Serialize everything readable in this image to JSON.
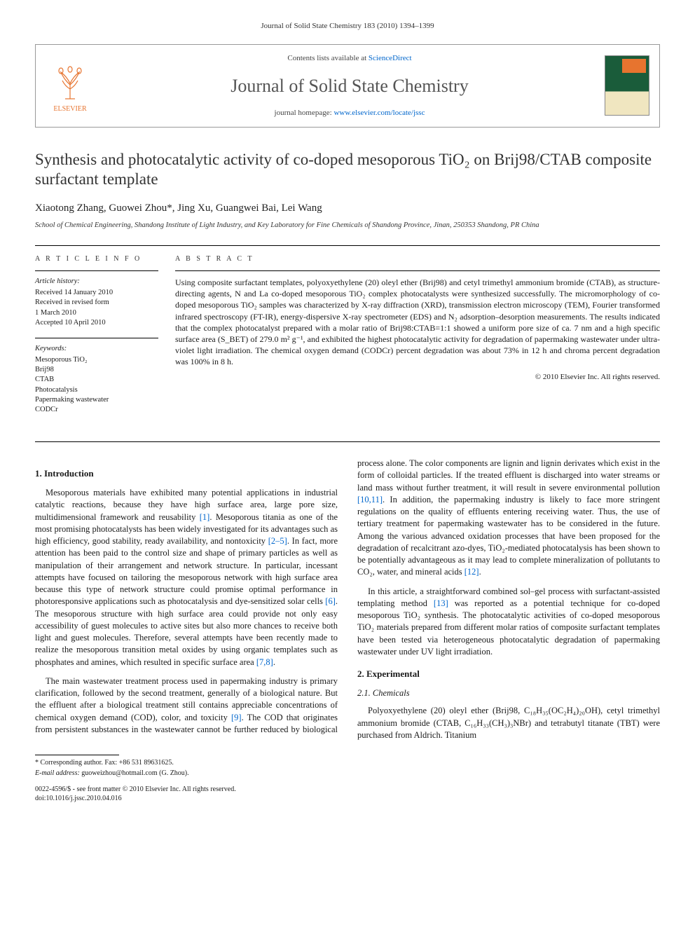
{
  "citation": "Journal of Solid State Chemistry 183 (2010) 1394–1399",
  "header": {
    "contents_prefix": "Contents lists available at ",
    "contents_link": "ScienceDirect",
    "journal_name": "Journal of Solid State Chemistry",
    "homepage_prefix": "journal homepage: ",
    "homepage_url": "www.elsevier.com/locate/jssc",
    "publisher_name": "ELSEVIER"
  },
  "title": "Synthesis and photocatalytic activity of co-doped mesoporous TiO₂ on Brij98/CTAB composite surfactant template",
  "authors": "Xiaotong Zhang, Guowei Zhou*, Jing Xu, Guangwei Bai, Lei Wang",
  "affiliation": "School of Chemical Engineering, Shandong Institute of Light Industry, and Key Laboratory for Fine Chemicals of Shandong Province, Jinan, 250353 Shandong, PR China",
  "info": {
    "label": "A R T I C L E  I N F O",
    "history_label": "Article history:",
    "received": "Received 14 January 2010",
    "revised": "Received in revised form",
    "revised_date": "1 March 2010",
    "accepted": "Accepted 10 April 2010",
    "keywords_label": "Keywords:",
    "keywords": [
      "Mesoporous TiO₂",
      "Brij98",
      "CTAB",
      "Photocatalysis",
      "Papermaking wastewater",
      "CODCr"
    ]
  },
  "abstract": {
    "label": "A B S T R A C T",
    "text": "Using composite surfactant templates, polyoxyethylene (20) oleyl ether (Brij98) and cetyl trimethyl ammonium bromide (CTAB), as structure-directing agents, N and La co-doped mesoporous TiO₂ complex photocatalysts were synthesized successfully. The micromorphology of co-doped mesoporous TiO₂ samples was characterized by X-ray diffraction (XRD), transmission electron microscopy (TEM), Fourier transformed infrared spectroscopy (FT-IR), energy-dispersive X-ray spectrometer (EDS) and N₂ adsorption–desorption measurements. The results indicated that the complex photocatalyst prepared with a molar ratio of Brij98:CTAB=1:1 showed a uniform pore size of ca. 7 nm and a high specific surface area (S_BET) of 279.0 m² g⁻¹, and exhibited the highest photocatalytic activity for degradation of papermaking wastewater under ultra-violet light irradiation. The chemical oxygen demand (CODCr) percent degradation was about 73% in 12 h and chroma percent degradation was 100% in 8 h.",
    "copyright": "© 2010 Elsevier Inc. All rights reserved."
  },
  "sections": {
    "intro_heading": "1. Introduction",
    "intro_p1": "Mesoporous materials have exhibited many potential applications in industrial catalytic reactions, because they have high surface area, large pore size, multidimensional framework and reusability [1]. Mesoporous titania as one of the most promising photocatalysts has been widely investigated for its advantages such as high efficiency, good stability, ready availability, and nontoxicity [2–5]. In fact, more attention has been paid to the control size and shape of primary particles as well as manipulation of their arrangement and network structure. In particular, incessant attempts have focused on tailoring the mesoporous network with high surface area because this type of network structure could promise optimal performance in photoresponsive applications such as photocatalysis and dye-sensitized solar cells [6]. The mesoporous structure with high surface area could provide not only easy accessibility of guest molecules to active sites but also more chances to receive both light and guest molecules. Therefore, several attempts have been recently made to realize the mesoporous transition metal oxides by using organic templates such as phosphates and amines, which resulted in specific surface area [7,8].",
    "intro_p2": "The main wastewater treatment process used in papermaking industry is primary clarification, followed by the second treatment, generally of a biological nature. But the effluent after a biological treatment still contains appreciable concentrations of chemical oxygen demand (COD), color, and toxicity [9]. The COD that originates from persistent substances in the wastewater cannot be further reduced by biological process alone. The color components are lignin and lignin derivates which exist in the form of colloidal particles. If the treated effluent is discharged into water streams or land mass without further treatment, it will result in severe environmental pollution [10,11]. In addition, the papermaking industry is likely to face more stringent regulations on the quality of effluents entering receiving water. Thus, the use of tertiary treatment for papermaking wastewater has to be considered in the future. Among the various advanced oxidation processes that have been proposed for the degradation of recalcitrant azo-dyes, TiO₂-mediated photocatalysis has been shown to be potentially advantageous as it may lead to complete mineralization of pollutants to CO₂, water, and mineral acids [12].",
    "intro_p3": "In this article, a straightforward combined sol–gel process with surfactant-assisted templating method [13] was reported as a potential technique for co-doped mesoporous TiO₂ synthesis. The photocatalytic activities of co-doped mesoporous TiO₂ materials prepared from different molar ratios of composite surfactant templates have been tested via heterogeneous photocatalytic degradation of papermaking wastewater under UV light irradiation.",
    "exp_heading": "2. Experimental",
    "chem_heading": "2.1. Chemicals",
    "chem_p1": "Polyoxyethylene (20) oleyl ether (Brij98, C₁₈H₃₅(OC₂H₄)₂₀OH), cetyl trimethyl ammonium bromide (CTAB, C₁₆H₃₃(CH₃)₃NBr) and tetrabutyl titanate (TBT) were purchased from Aldrich. Titanium"
  },
  "footer": {
    "corresponding": "* Corresponding author. Fax: +86 531 89631625.",
    "email_label": "E-mail address:",
    "email": "guoweizhou@hotmail.com (G. Zhou).",
    "issn": "0022-4596/$ - see front matter © 2010 Elsevier Inc. All rights reserved.",
    "doi": "doi:10.1016/j.jssc.2010.04.016"
  },
  "refs": {
    "r1": "[1]",
    "r2_5": "[2–5]",
    "r6": "[6]",
    "r7_8": "[7,8]",
    "r9": "[9]",
    "r10_11": "[10,11]",
    "r12": "[12]",
    "r13": "[13]"
  },
  "colors": {
    "link": "#0066cc",
    "elsevier": "#e7742f",
    "cover_green": "#1a5c3a"
  }
}
